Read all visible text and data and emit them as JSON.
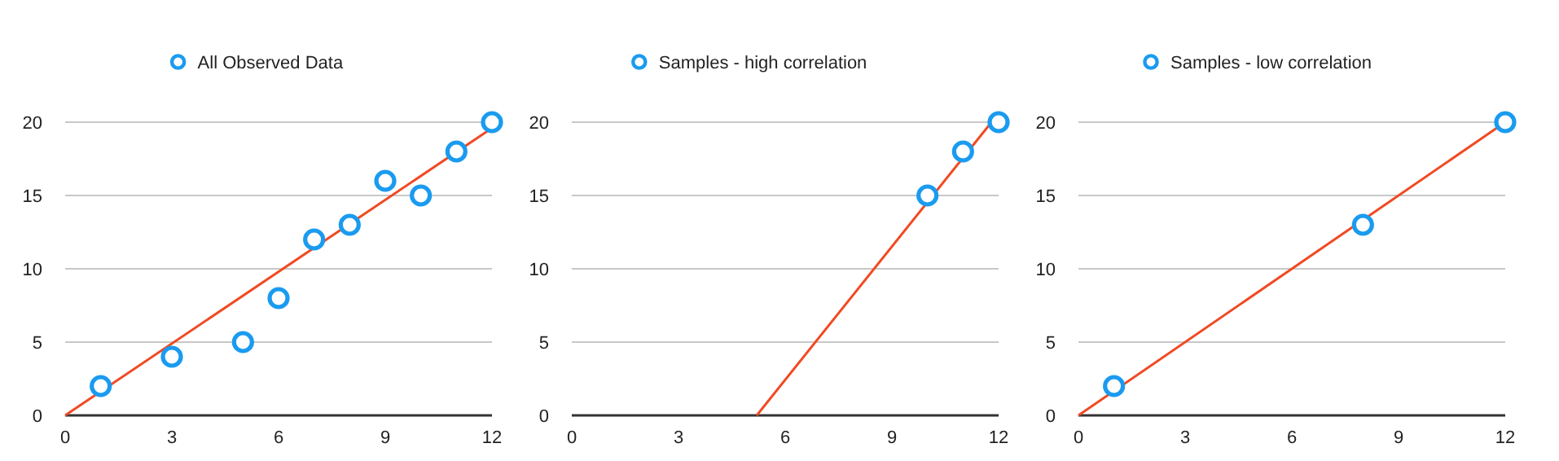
{
  "chart_data": [
    {
      "type": "scatter",
      "x": [
        1,
        3,
        5,
        6,
        7,
        8,
        9,
        10,
        11,
        12
      ],
      "xlim": [
        0,
        12
      ],
      "xticks": [
        0,
        3,
        6,
        9,
        12
      ],
      "ylim": [
        0,
        20
      ],
      "yticks": [
        0,
        5,
        10,
        15,
        20
      ],
      "grid": "y",
      "legend": "top",
      "series": [
        {
          "name": "All Observed Data",
          "color": "#1a9bf0",
          "marker": "circle",
          "values": [
            2,
            4,
            5,
            8,
            12,
            13,
            16,
            15,
            18,
            20
          ]
        },
        {
          "type": "line",
          "color": "#f04a23",
          "marker": "none",
          "x": [
            0,
            12
          ],
          "values": [
            0,
            19.6
          ]
        }
      ]
    },
    {
      "type": "scatter",
      "x": [
        10,
        11,
        12
      ],
      "xlim": [
        0,
        12
      ],
      "xticks": [
        0,
        3,
        6,
        9,
        12
      ],
      "ylim": [
        0,
        20
      ],
      "yticks": [
        0,
        5,
        10,
        15,
        20
      ],
      "grid": "y",
      "legend": "top",
      "series": [
        {
          "name": "Samples - high correlation",
          "color": "#1a9bf0",
          "marker": "circle",
          "values": [
            15,
            18,
            20
          ]
        },
        {
          "type": "line",
          "color": "#f04a23",
          "marker": "none",
          "x": [
            5.2,
            11.8
          ],
          "values": [
            0,
            20
          ]
        }
      ]
    },
    {
      "type": "scatter",
      "x": [
        1,
        8,
        12
      ],
      "xlim": [
        0,
        12
      ],
      "xticks": [
        0,
        3,
        6,
        9,
        12
      ],
      "ylim": [
        0,
        20
      ],
      "yticks": [
        0,
        5,
        10,
        15,
        20
      ],
      "grid": "y",
      "legend": "top",
      "series": [
        {
          "name": "Samples - low correlation",
          "color": "#1a9bf0",
          "marker": "circle",
          "values": [
            2,
            13,
            20
          ]
        },
        {
          "type": "line",
          "color": "#f04a23",
          "marker": "none",
          "x": [
            0,
            12
          ],
          "values": [
            0,
            20
          ]
        }
      ]
    }
  ]
}
